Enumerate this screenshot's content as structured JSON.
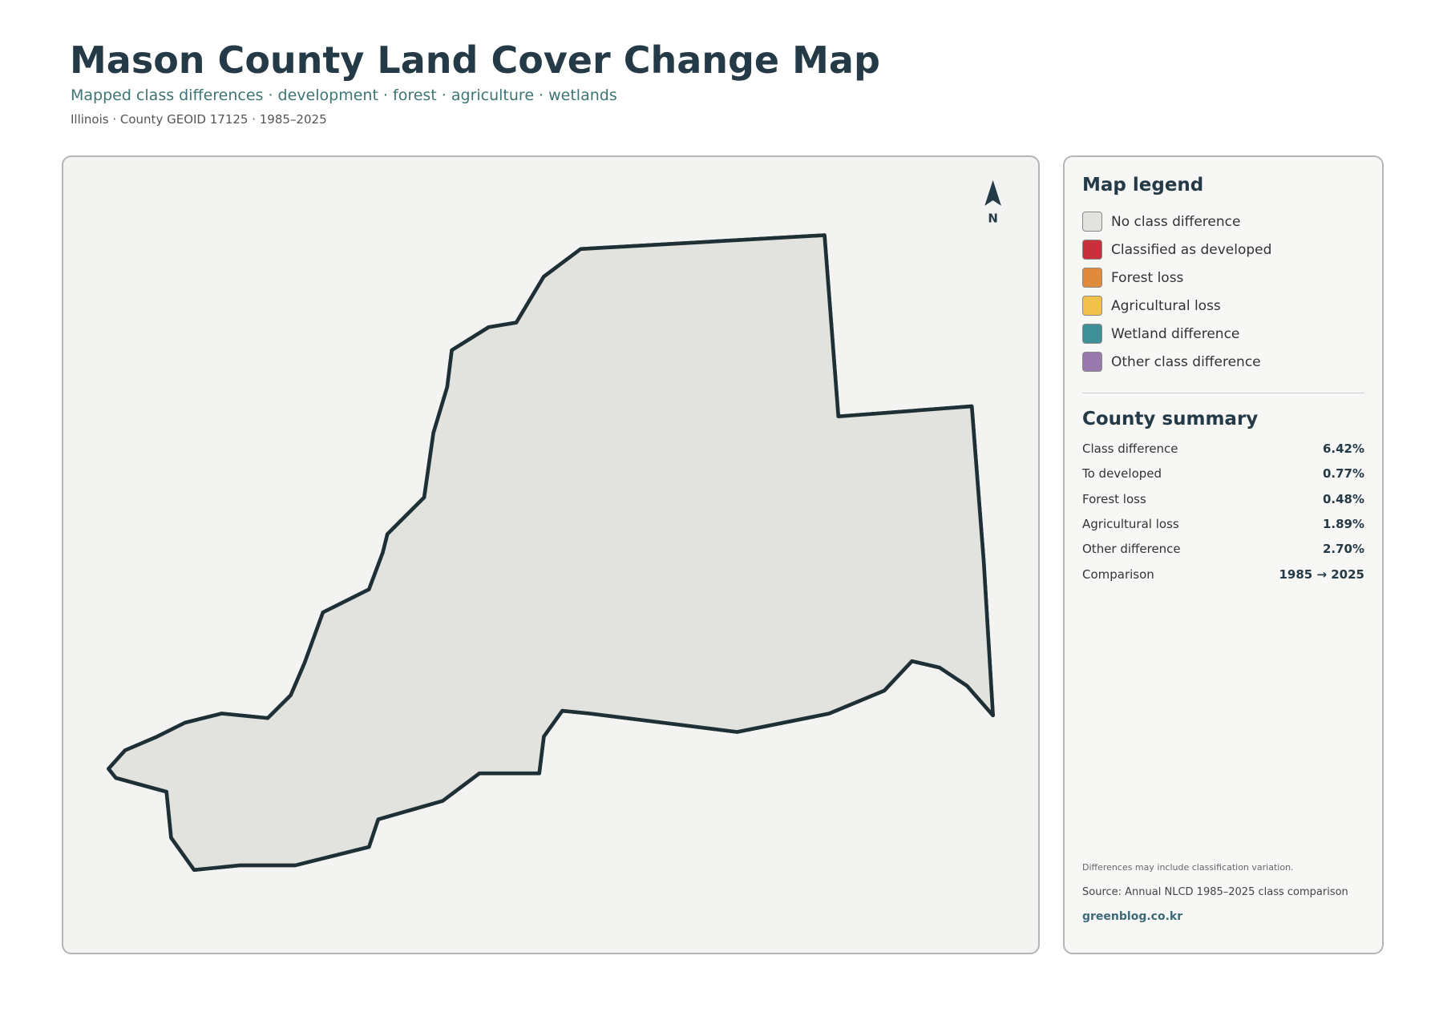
{
  "header": {
    "title": "Mason County Land Cover Change Map",
    "subtitle": "Mapped class differences · development · forest · agriculture · wetlands",
    "meta": "Illinois · County GEOID 17125 · 1985–2025"
  },
  "map": {
    "north_label": "N"
  },
  "legend": {
    "title": "Map legend",
    "items": [
      {
        "label": "No class difference",
        "color": "#e2e2df"
      },
      {
        "label": "Classified as developed",
        "color": "#c9303e"
      },
      {
        "label": "Forest loss",
        "color": "#e08a3c"
      },
      {
        "label": "Agricultural loss",
        "color": "#f0c24b"
      },
      {
        "label": "Wetland difference",
        "color": "#3f8f96"
      },
      {
        "label": "Other class difference",
        "color": "#9779ad"
      }
    ]
  },
  "summary": {
    "title": "County summary",
    "rows": [
      {
        "label": "Class difference",
        "value": "6.42%"
      },
      {
        "label": "To developed",
        "value": "0.77%"
      },
      {
        "label": "Forest loss",
        "value": "0.48%"
      },
      {
        "label": "Agricultural loss",
        "value": "1.89%"
      },
      {
        "label": "Other difference",
        "value": "2.70%"
      },
      {
        "label": "Comparison",
        "value": "1985 → 2025"
      }
    ]
  },
  "footer": {
    "note": "Differences may include classification variation.",
    "source": "Source: Annual NLCD 1985–2025 class comparison",
    "link": "greenblog.co.kr"
  }
}
